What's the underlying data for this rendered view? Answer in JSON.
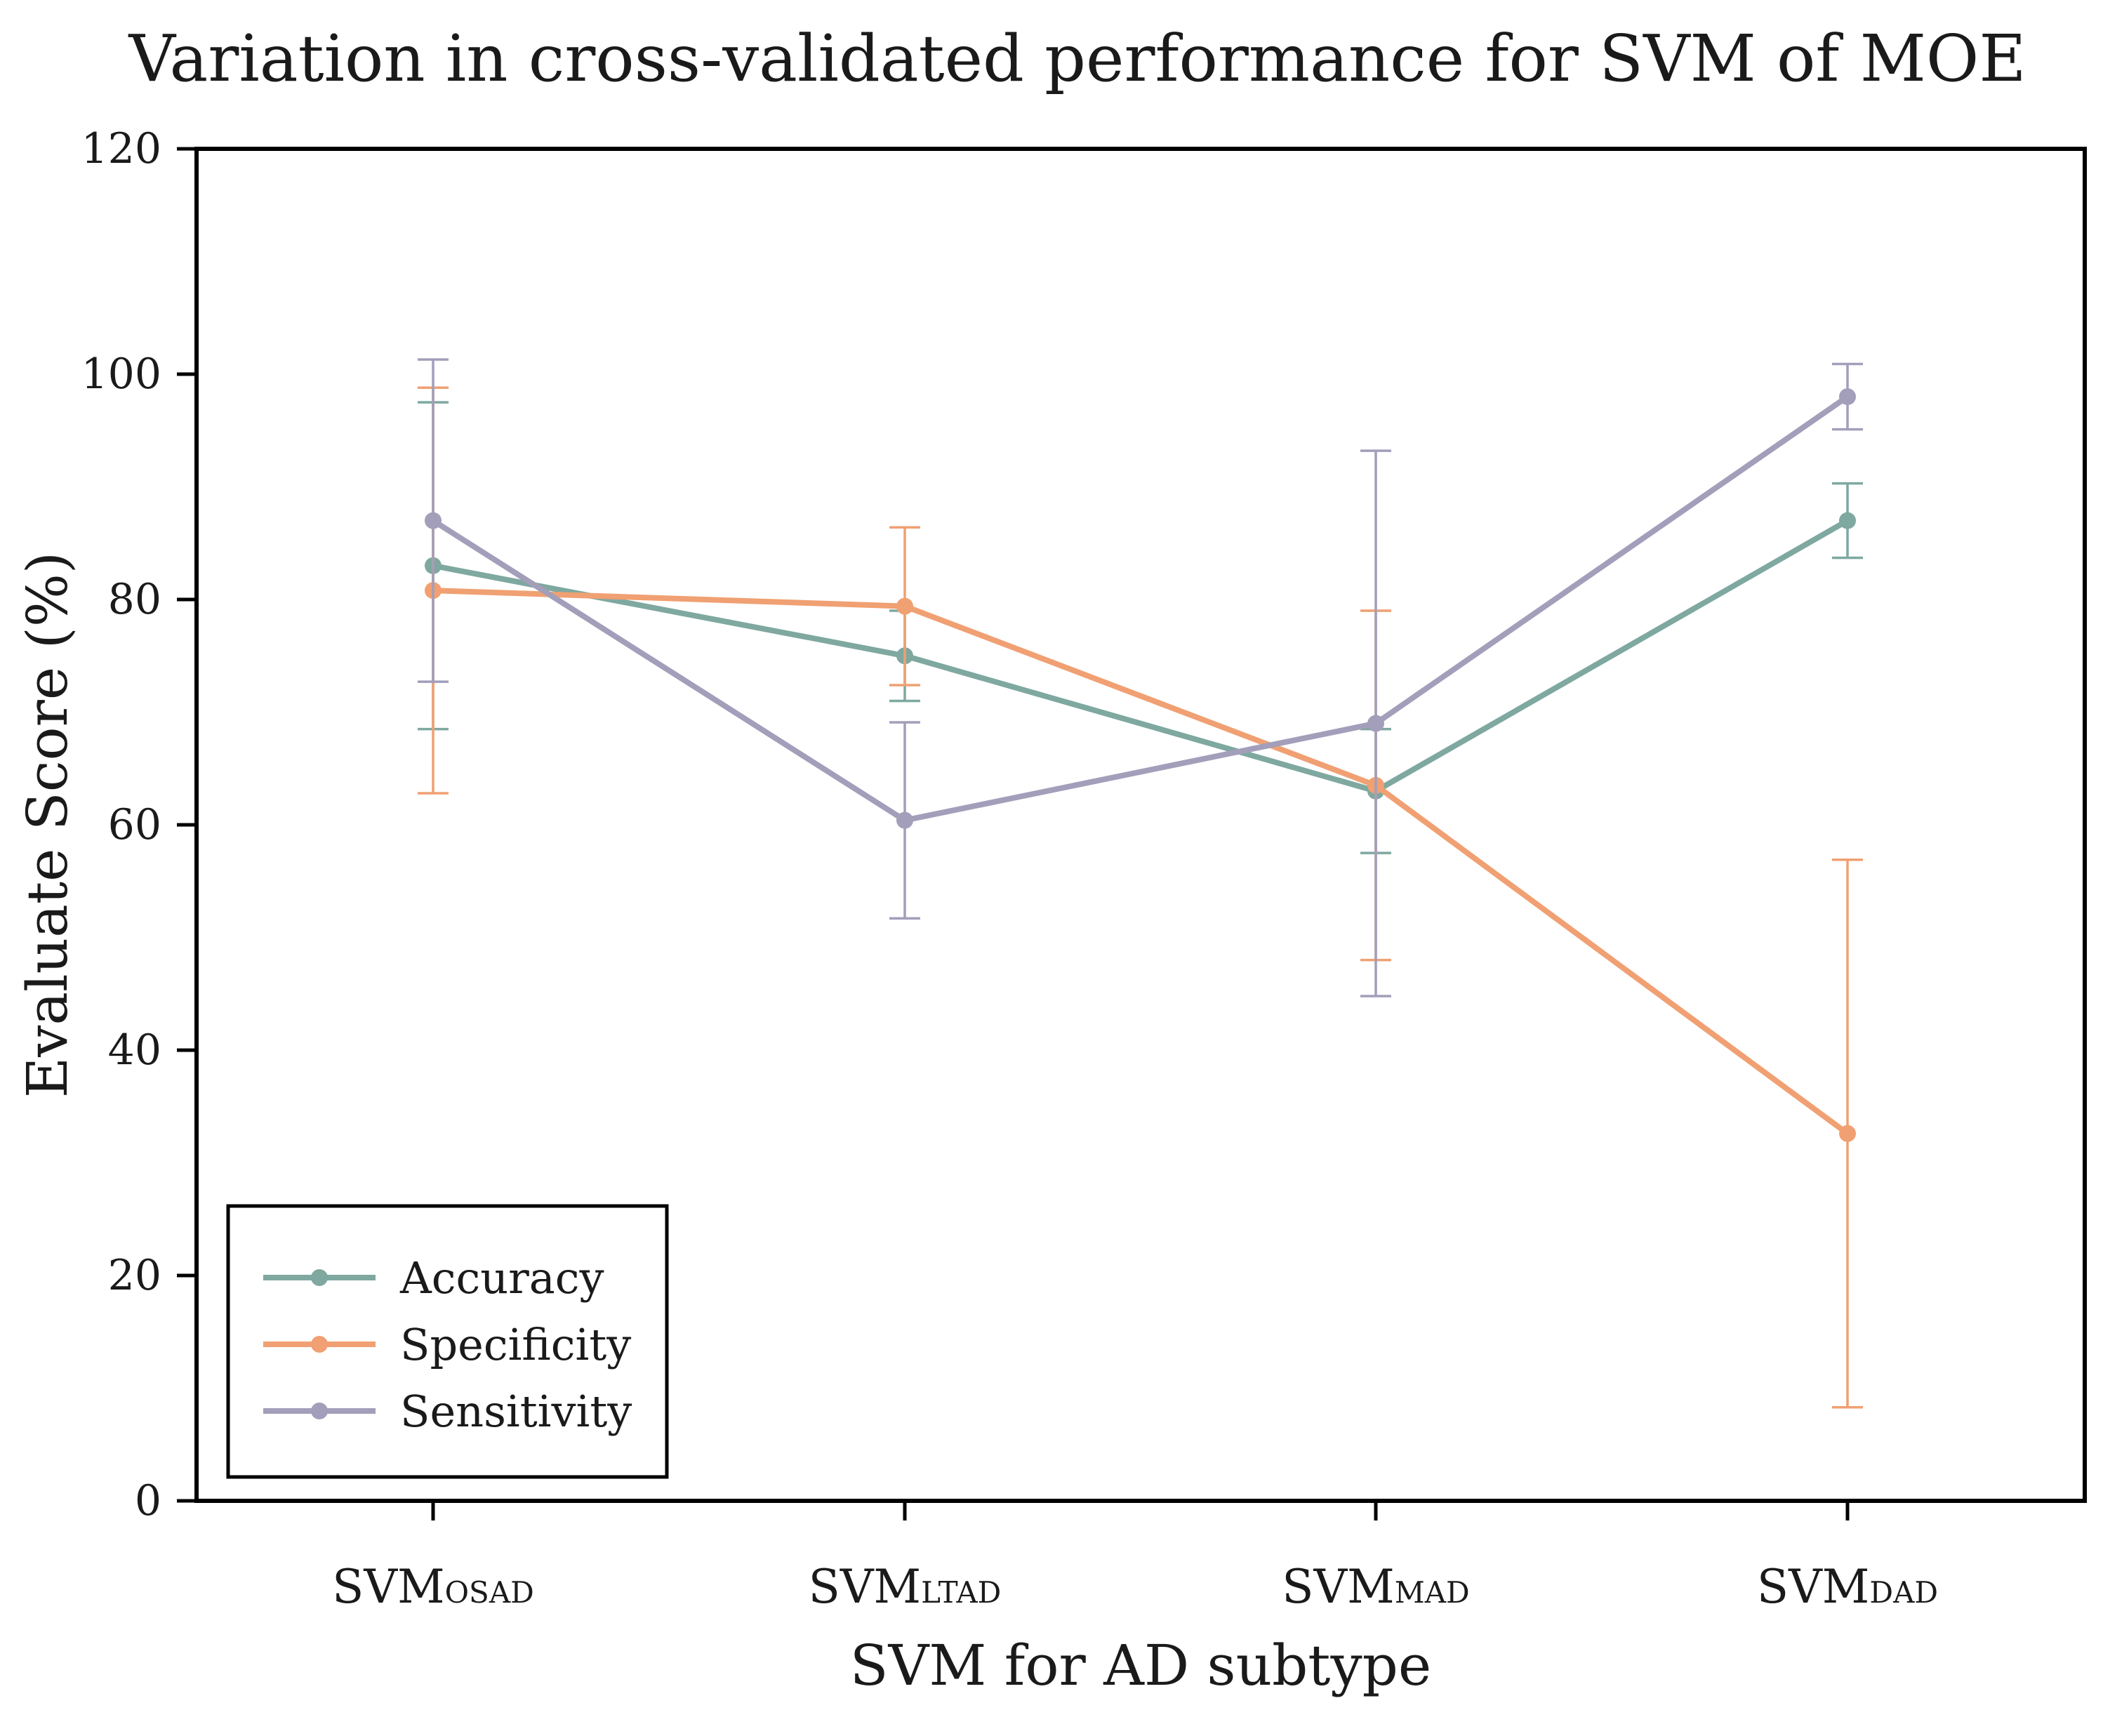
{
  "chart_data": {
    "type": "line",
    "title": "Variation in cross-validated performance for SVM of MOE",
    "xlabel": "SVM for AD subtype",
    "ylabel": "Evaluate Score (%)",
    "ylim": [
      0,
      120
    ],
    "yticks": [
      0,
      20,
      40,
      60,
      80,
      100,
      120
    ],
    "grid": false,
    "legend_position": "bottom-left",
    "categories": [
      {
        "base": "SVM",
        "sub": "OSAD"
      },
      {
        "base": "SVM",
        "sub": "LTAD"
      },
      {
        "base": "SVM",
        "sub": "MAD"
      },
      {
        "base": "SVM",
        "sub": "DAD"
      }
    ],
    "series": [
      {
        "name": "Accuracy",
        "color": "#7ea8a0",
        "values": [
          83,
          75,
          63,
          87
        ],
        "error": [
          14.5,
          4,
          5.5,
          3.3
        ]
      },
      {
        "name": "Specificity",
        "color": "#f0a072",
        "values": [
          80.8,
          79.4,
          63.5,
          32.6
        ],
        "error": [
          18,
          7,
          15.5,
          24.3
        ]
      },
      {
        "name": "Sensitivity",
        "color": "#a39eba",
        "values": [
          87,
          60.4,
          69,
          98
        ],
        "error": [
          14.3,
          8.7,
          24.2,
          2.9
        ]
      }
    ]
  }
}
